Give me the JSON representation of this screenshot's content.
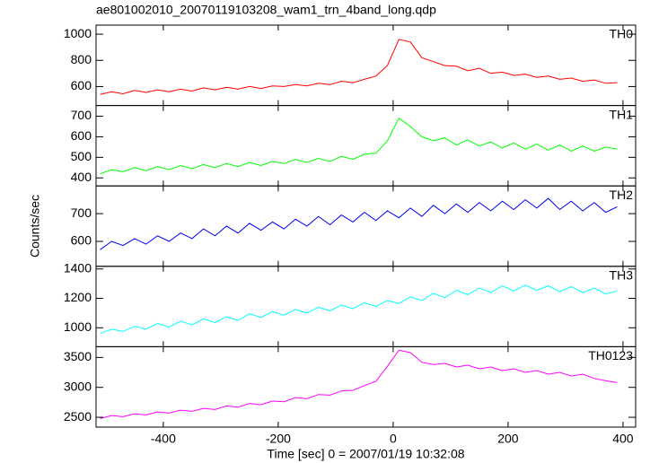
{
  "chart_data": [
    {
      "type": "line",
      "title": "ae801002010_20070119103208_wam1_trn_4band_long.qdp",
      "x": [
        -510,
        -490,
        -470,
        -450,
        -430,
        -410,
        -390,
        -370,
        -350,
        -330,
        -310,
        -290,
        -270,
        -250,
        -230,
        -210,
        -190,
        -170,
        -150,
        -130,
        -110,
        -90,
        -70,
        -50,
        -30,
        -10,
        10,
        30,
        50,
        70,
        90,
        110,
        130,
        150,
        170,
        190,
        210,
        230,
        250,
        270,
        290,
        310,
        330,
        350,
        370,
        390
      ],
      "series": [
        {
          "name": "TH0",
          "color": "#ff0000",
          "values": [
            540,
            560,
            545,
            570,
            555,
            575,
            560,
            580,
            565,
            590,
            575,
            595,
            580,
            600,
            585,
            605,
            600,
            615,
            605,
            625,
            615,
            640,
            630,
            655,
            680,
            760,
            960,
            940,
            820,
            790,
            760,
            755,
            720,
            740,
            700,
            710,
            685,
            695,
            670,
            680,
            655,
            665,
            640,
            650,
            625,
            630
          ]
        }
      ],
      "xlim": [
        -517,
        422
      ],
      "xticks": [
        -400,
        -200,
        0,
        200,
        400
      ],
      "ylim": [
        455,
        1069
      ],
      "yticks": [
        600,
        800,
        1000
      ]
    },
    {
      "type": "line",
      "x": [
        -510,
        -490,
        -470,
        -450,
        -430,
        -410,
        -390,
        -370,
        -350,
        -330,
        -310,
        -290,
        -270,
        -250,
        -230,
        -210,
        -190,
        -170,
        -150,
        -130,
        -110,
        -90,
        -70,
        -50,
        -30,
        -10,
        10,
        30,
        50,
        70,
        90,
        110,
        130,
        150,
        170,
        190,
        210,
        230,
        250,
        270,
        290,
        310,
        330,
        350,
        370,
        390
      ],
      "series": [
        {
          "name": "TH1",
          "color": "#00ff00",
          "values": [
            420,
            440,
            430,
            450,
            435,
            455,
            440,
            460,
            445,
            465,
            450,
            470,
            455,
            475,
            460,
            480,
            470,
            490,
            475,
            495,
            480,
            505,
            490,
            515,
            520,
            580,
            690,
            650,
            600,
            580,
            595,
            560,
            585,
            555,
            575,
            545,
            570,
            540,
            565,
            535,
            560,
            530,
            555,
            530,
            550,
            540
          ]
        }
      ],
      "xlim": [
        -517,
        422
      ],
      "xticks": [
        -400,
        -200,
        0,
        200,
        400
      ],
      "ylim": [
        361,
        752
      ],
      "yticks": [
        400,
        500,
        600,
        700
      ]
    },
    {
      "type": "line",
      "ylabel": "Counts/sec",
      "x": [
        -510,
        -490,
        -470,
        -450,
        -430,
        -410,
        -390,
        -370,
        -350,
        -330,
        -310,
        -290,
        -270,
        -250,
        -230,
        -210,
        -190,
        -170,
        -150,
        -130,
        -110,
        -90,
        -70,
        -50,
        -30,
        -10,
        10,
        30,
        50,
        70,
        90,
        110,
        130,
        150,
        170,
        190,
        210,
        230,
        250,
        270,
        290,
        310,
        330,
        350,
        370,
        390
      ],
      "series": [
        {
          "name": "TH2",
          "color": "#0000ee",
          "values": [
            570,
            600,
            585,
            610,
            590,
            620,
            600,
            630,
            610,
            645,
            620,
            655,
            630,
            665,
            640,
            670,
            645,
            680,
            655,
            690,
            660,
            695,
            670,
            705,
            675,
            710,
            685,
            720,
            690,
            730,
            700,
            735,
            705,
            740,
            710,
            745,
            715,
            750,
            720,
            755,
            715,
            745,
            710,
            740,
            705,
            725
          ]
        }
      ],
      "xlim": [
        -517,
        422
      ],
      "xticks": [
        -400,
        -200,
        0,
        200,
        400
      ],
      "ylim": [
        510,
        800
      ],
      "yticks": [
        600,
        700
      ]
    },
    {
      "type": "line",
      "x": [
        -510,
        -490,
        -470,
        -450,
        -430,
        -410,
        -390,
        -370,
        -350,
        -330,
        -310,
        -290,
        -270,
        -250,
        -230,
        -210,
        -190,
        -170,
        -150,
        -130,
        -110,
        -90,
        -70,
        -50,
        -30,
        -10,
        10,
        30,
        50,
        70,
        90,
        110,
        130,
        150,
        170,
        190,
        210,
        230,
        250,
        270,
        290,
        310,
        330,
        350,
        370,
        390
      ],
      "series": [
        {
          "name": "TH3",
          "color": "#00ffff",
          "values": [
            960,
            990,
            975,
            1010,
            990,
            1030,
            1005,
            1045,
            1020,
            1060,
            1035,
            1075,
            1050,
            1095,
            1070,
            1110,
            1085,
            1125,
            1100,
            1140,
            1115,
            1155,
            1130,
            1170,
            1145,
            1185,
            1165,
            1210,
            1185,
            1235,
            1205,
            1255,
            1225,
            1270,
            1240,
            1285,
            1250,
            1290,
            1255,
            1285,
            1245,
            1280,
            1240,
            1270,
            1230,
            1250
          ]
        }
      ],
      "xlim": [
        -517,
        422
      ],
      "xticks": [
        -400,
        -200,
        0,
        200,
        400
      ],
      "ylim": [
        871,
        1418
      ],
      "yticks": [
        1000,
        1200,
        1400
      ]
    },
    {
      "type": "line",
      "xlabel": "Time [sec] 0 = 2007/01/19 10:32:08",
      "x": [
        -510,
        -490,
        -470,
        -450,
        -430,
        -410,
        -390,
        -370,
        -350,
        -330,
        -310,
        -290,
        -270,
        -250,
        -230,
        -210,
        -190,
        -170,
        -150,
        -130,
        -110,
        -90,
        -70,
        -50,
        -30,
        -10,
        10,
        30,
        50,
        70,
        90,
        110,
        130,
        150,
        170,
        190,
        210,
        230,
        250,
        270,
        290,
        310,
        330,
        350,
        370,
        390
      ],
      "series": [
        {
          "name": "TH0123",
          "color": "#ff00ff",
          "values": [
            2480,
            2530,
            2510,
            2560,
            2540,
            2590,
            2570,
            2620,
            2600,
            2650,
            2630,
            2690,
            2670,
            2730,
            2710,
            2770,
            2760,
            2830,
            2810,
            2880,
            2870,
            2940,
            2950,
            3030,
            3100,
            3350,
            3620,
            3580,
            3420,
            3380,
            3400,
            3340,
            3370,
            3310,
            3340,
            3280,
            3310,
            3250,
            3280,
            3220,
            3250,
            3190,
            3220,
            3150,
            3110,
            3080
          ]
        }
      ],
      "xlim": [
        -517,
        422
      ],
      "xticks": [
        -400,
        -200,
        0,
        200,
        400
      ],
      "ylim": [
        2336,
        3679
      ],
      "yticks": [
        2500,
        3000,
        3500
      ]
    }
  ]
}
